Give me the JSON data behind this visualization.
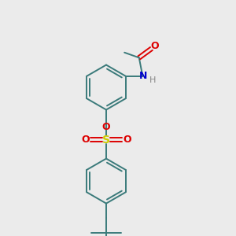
{
  "background_color": "#ebebeb",
  "bond_color": "#3a7a7a",
  "atom_colors": {
    "O": "#dd0000",
    "N": "#0000cc",
    "S": "#cccc00",
    "H": "#888888",
    "C": "#3a7a7a"
  },
  "figsize": [
    3.0,
    3.0
  ],
  "dpi": 100,
  "xlim": [
    0,
    10
  ],
  "ylim": [
    0,
    10
  ]
}
